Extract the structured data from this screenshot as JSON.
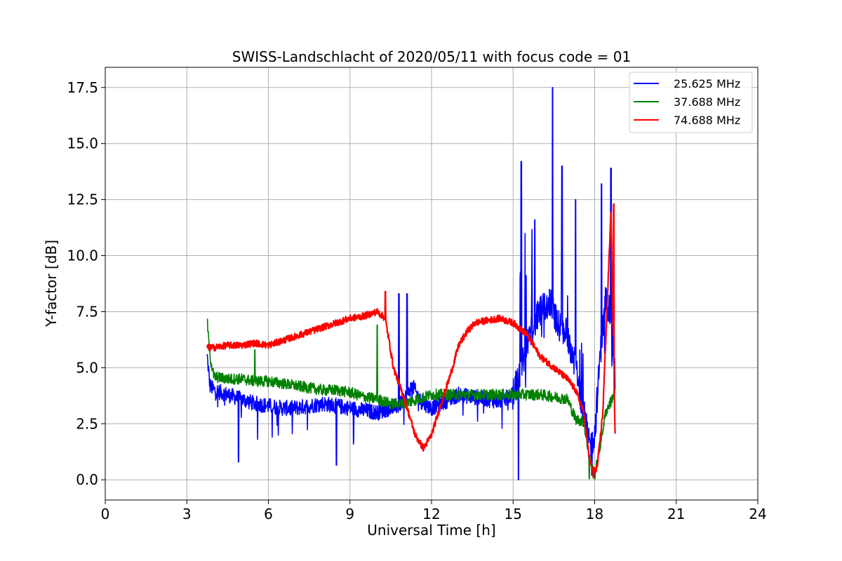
{
  "chart_data": {
    "type": "line",
    "title": "SWISS-Landschlacht of 2020/05/11 with focus code = 01",
    "xlabel": "Universal Time [h]",
    "ylabel": "Y-factor [dB]",
    "xlim": [
      0,
      24
    ],
    "ylim": [
      -0.9,
      18.4
    ],
    "xticks": [
      0,
      3,
      6,
      9,
      12,
      15,
      18,
      21,
      24
    ],
    "xtick_labels": [
      "0",
      "3",
      "6",
      "9",
      "12",
      "15",
      "18",
      "21",
      "24"
    ],
    "yticks": [
      0.0,
      2.5,
      5.0,
      7.5,
      10.0,
      12.5,
      15.0,
      17.5
    ],
    "ytick_labels": [
      "0.0",
      "2.5",
      "5.0",
      "7.5",
      "10.0",
      "12.5",
      "15.0",
      "17.5"
    ],
    "grid": true,
    "legend_position": "top-right",
    "series": [
      {
        "name": "25.625 MHz",
        "color": "#0000ff",
        "x": [
          3.75,
          3.85,
          4.0,
          4.5,
          5.0,
          5.5,
          6.0,
          6.5,
          7.0,
          7.5,
          8.0,
          8.5,
          9.0,
          9.5,
          10.0,
          10.5,
          10.8,
          11.0,
          11.3,
          11.6,
          12.0,
          12.5,
          13.0,
          13.5,
          14.0,
          14.5,
          15.0,
          15.3,
          15.6,
          16.0,
          16.4,
          16.6,
          17.0,
          17.3,
          17.6,
          17.8,
          18.0,
          18.2,
          18.4,
          18.6,
          18.75
        ],
        "y": [
          5.5,
          4.2,
          4.0,
          3.8,
          3.6,
          3.4,
          3.3,
          3.2,
          3.2,
          3.3,
          3.4,
          3.3,
          3.2,
          3.1,
          3.0,
          3.2,
          3.3,
          3.6,
          4.2,
          3.5,
          3.2,
          3.5,
          3.8,
          3.7,
          3.6,
          3.5,
          3.8,
          5.0,
          6.5,
          7.5,
          8.0,
          7.0,
          6.5,
          5.0,
          3.0,
          1.5,
          2.0,
          5.5,
          8.0,
          7.5,
          4.5
        ],
        "peaks": [
          {
            "x": 10.8,
            "y": 8.3
          },
          {
            "x": 11.1,
            "y": 8.3
          },
          {
            "x": 15.3,
            "y": 14.2
          },
          {
            "x": 15.8,
            "y": 11.6
          },
          {
            "x": 16.45,
            "y": 17.5
          },
          {
            "x": 16.8,
            "y": 14.0
          },
          {
            "x": 17.3,
            "y": 12.5
          },
          {
            "x": 18.25,
            "y": 13.2
          },
          {
            "x": 18.6,
            "y": 13.9
          }
        ],
        "dips": [
          {
            "x": 4.9,
            "y": 0.8
          },
          {
            "x": 8.5,
            "y": 0.65
          },
          {
            "x": 15.2,
            "y": 0.0
          },
          {
            "x": 17.9,
            "y": 0.2
          }
        ]
      },
      {
        "name": "37.688 MHz",
        "color": "#008000",
        "x": [
          3.75,
          3.85,
          4.0,
          4.5,
          5.0,
          5.5,
          6.0,
          6.5,
          7.0,
          7.5,
          8.0,
          8.5,
          9.0,
          9.5,
          10.0,
          10.5,
          11.0,
          11.5,
          12.0,
          12.5,
          13.0,
          13.5,
          14.0,
          14.5,
          15.0,
          15.5,
          16.0,
          16.5,
          17.0,
          17.3,
          17.6,
          17.8,
          18.0,
          18.2,
          18.4,
          18.6,
          18.75
        ],
        "y": [
          7.1,
          5.5,
          4.6,
          4.5,
          4.5,
          4.4,
          4.4,
          4.3,
          4.2,
          4.1,
          4.0,
          4.0,
          3.9,
          3.7,
          3.6,
          3.4,
          3.4,
          3.6,
          3.8,
          3.8,
          3.8,
          3.8,
          3.8,
          3.8,
          3.8,
          3.8,
          3.8,
          3.7,
          3.6,
          2.7,
          2.6,
          1.0,
          0.2,
          1.5,
          3.0,
          3.5,
          4.0
        ],
        "peaks": [
          {
            "x": 10.0,
            "y": 6.9
          },
          {
            "x": 5.5,
            "y": 5.8
          }
        ],
        "dips": [
          {
            "x": 17.8,
            "y": 0.05
          }
        ]
      },
      {
        "name": "74.688 MHz",
        "color": "#ff0000",
        "x": [
          3.75,
          4.0,
          4.5,
          5.0,
          5.5,
          6.0,
          6.5,
          7.0,
          7.5,
          8.0,
          8.5,
          9.0,
          9.5,
          10.0,
          10.3,
          10.6,
          11.0,
          11.4,
          11.7,
          12.0,
          12.3,
          12.7,
          13.0,
          13.3,
          13.6,
          14.0,
          14.5,
          15.0,
          15.5,
          16.0,
          16.5,
          17.0,
          17.3,
          17.6,
          17.8,
          17.95,
          18.1,
          18.3,
          18.5,
          18.6,
          18.75
        ],
        "y": [
          5.9,
          5.9,
          6.0,
          6.0,
          6.1,
          6.0,
          6.2,
          6.4,
          6.6,
          6.8,
          7.0,
          7.2,
          7.3,
          7.5,
          7.2,
          5.0,
          3.6,
          2.0,
          1.4,
          2.0,
          3.2,
          4.7,
          6.0,
          6.6,
          7.0,
          7.1,
          7.2,
          7.0,
          6.5,
          5.5,
          5.0,
          4.5,
          4.0,
          3.0,
          1.0,
          0.3,
          0.6,
          3.0,
          9.0,
          12.0,
          2.0
        ],
        "peaks": [
          {
            "x": 10.3,
            "y": 8.4
          },
          {
            "x": 18.7,
            "y": 12.3
          }
        ],
        "dips": [
          {
            "x": 17.95,
            "y": 0.1
          }
        ]
      }
    ]
  }
}
